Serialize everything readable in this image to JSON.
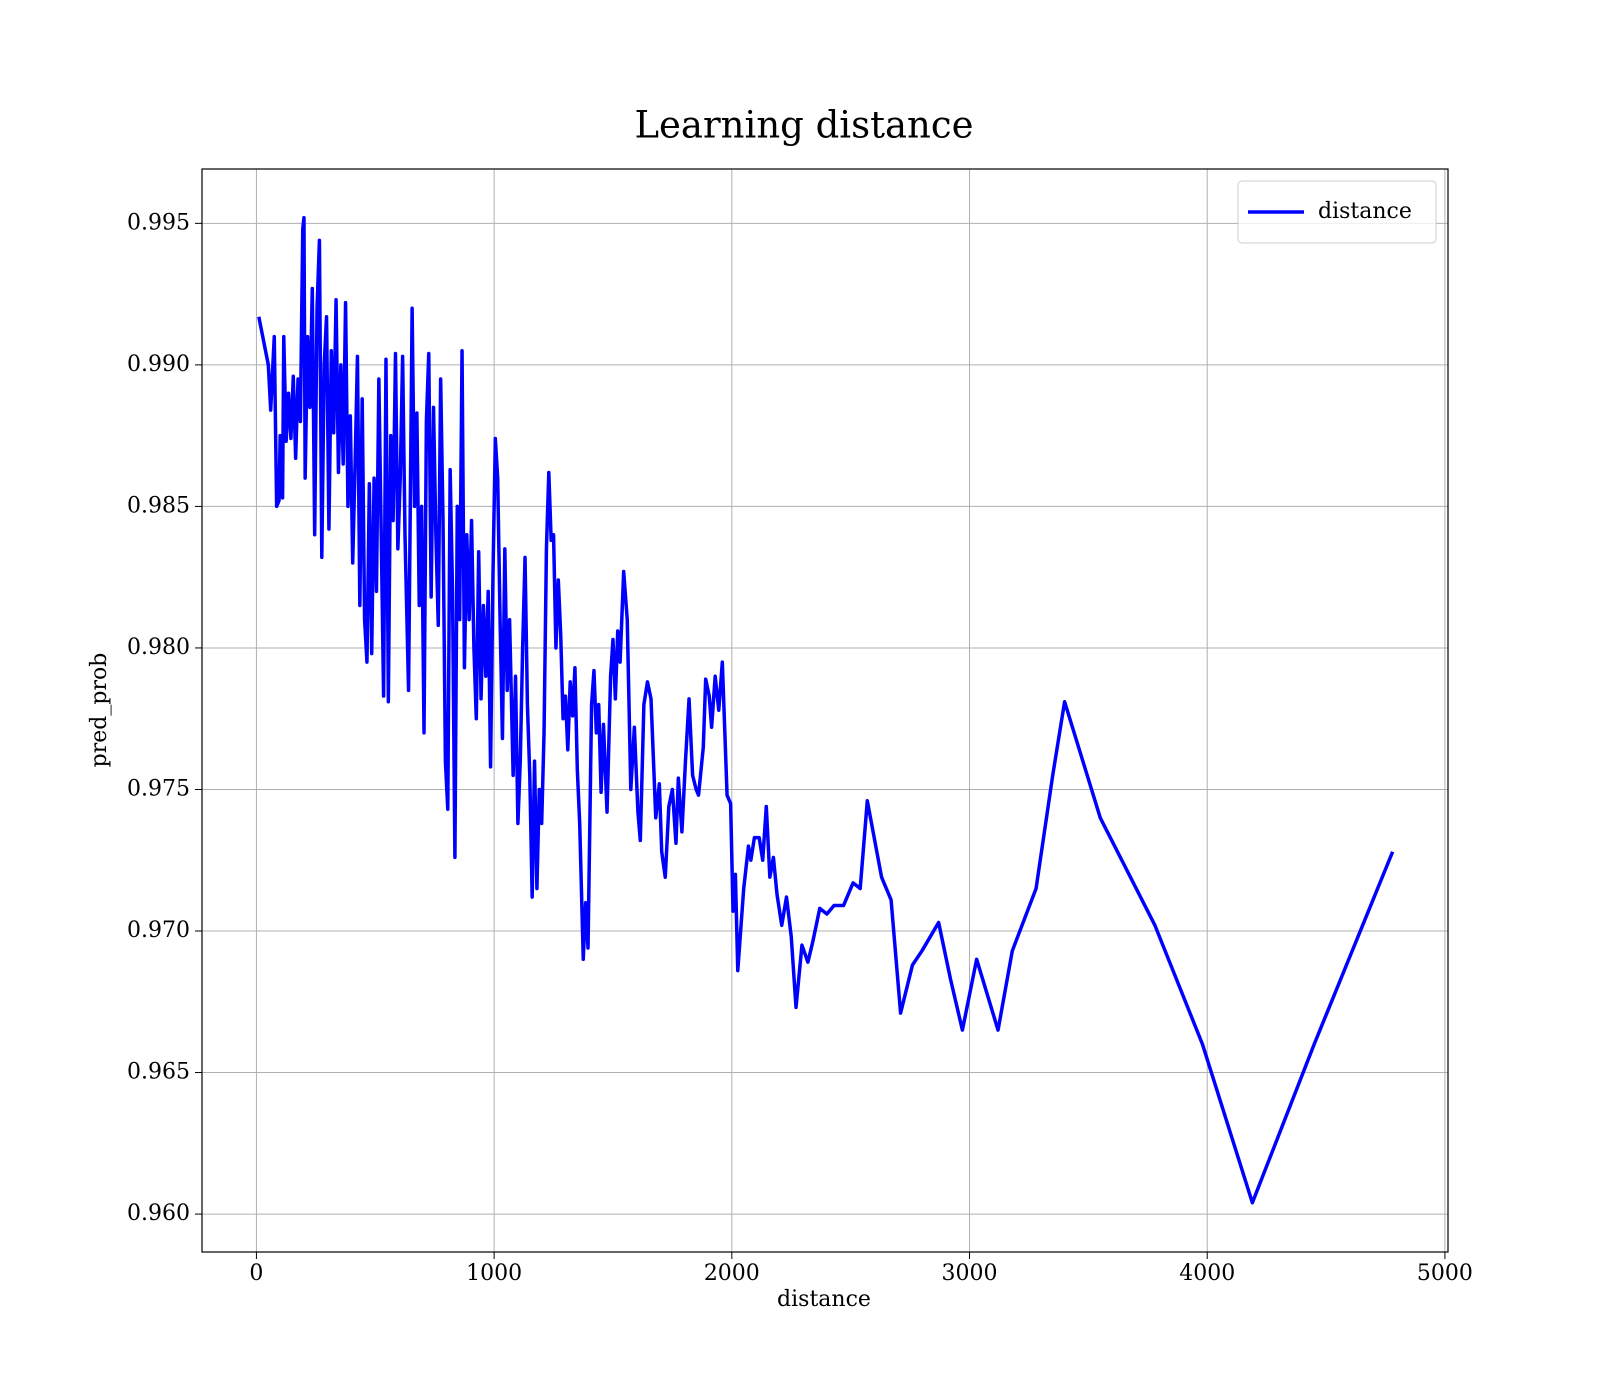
{
  "chart_data": {
    "type": "line",
    "title": "Learning distance",
    "xlabel": "distance",
    "ylabel": "pred_prob",
    "xlim": [
      -229,
      5013
    ],
    "ylim": [
      0.95866,
      0.99692
    ],
    "xticks": [
      0,
      1000,
      2000,
      3000,
      4000,
      5000
    ],
    "yticks": [
      {
        "value": 0.96,
        "label": "0.960"
      },
      0.965,
      {
        "value": 0.97,
        "label": "0.970"
      },
      0.975,
      {
        "value": 0.98,
        "label": "0.980"
      },
      0.985,
      {
        "value": 0.99,
        "label": "0.990"
      },
      0.995
    ],
    "grid": true,
    "legend": "upper right",
    "x": [
      10,
      50,
      60,
      75,
      85,
      95,
      100,
      110,
      115,
      125,
      135,
      145,
      155,
      165,
      175,
      185,
      190,
      195,
      200,
      205,
      215,
      225,
      235,
      245,
      255,
      265,
      275,
      285,
      295,
      305,
      315,
      325,
      335,
      345,
      355,
      365,
      375,
      385,
      395,
      405,
      415,
      425,
      435,
      445,
      455,
      465,
      475,
      485,
      495,
      505,
      515,
      525,
      535,
      545,
      555,
      565,
      575,
      585,
      595,
      605,
      615,
      625,
      640,
      655,
      665,
      675,
      685,
      695,
      705,
      715,
      725,
      735,
      745,
      755,
      765,
      775,
      785,
      795,
      805,
      815,
      825,
      835,
      845,
      855,
      865,
      875,
      885,
      895,
      905,
      915,
      925,
      935,
      945,
      955,
      965,
      975,
      985,
      995,
      1005,
      1015,
      1025,
      1035,
      1045,
      1055,
      1065,
      1080,
      1090,
      1100,
      1110,
      1120,
      1130,
      1140,
      1150,
      1160,
      1170,
      1180,
      1190,
      1200,
      1210,
      1220,
      1230,
      1240,
      1250,
      1260,
      1270,
      1280,
      1290,
      1300,
      1310,
      1320,
      1330,
      1340,
      1350,
      1360,
      1375,
      1385,
      1395,
      1410,
      1420,
      1430,
      1440,
      1450,
      1460,
      1475,
      1490,
      1500,
      1510,
      1520,
      1530,
      1545,
      1560,
      1575,
      1590,
      1605,
      1615,
      1630,
      1645,
      1660,
      1680,
      1695,
      1705,
      1720,
      1735,
      1750,
      1765,
      1775,
      1790,
      1805,
      1820,
      1835,
      1850,
      1860,
      1880,
      1890,
      1905,
      1915,
      1930,
      1945,
      1960,
      1980,
      1995,
      2005,
      2015,
      2025,
      2050,
      2070,
      2080,
      2095,
      2115,
      2130,
      2145,
      2160,
      2175,
      2190,
      2210,
      2230,
      2250,
      2270,
      2295,
      2320,
      2340,
      2370,
      2400,
      2430,
      2470,
      2510,
      2540,
      2570,
      2630,
      2670,
      2710,
      2760,
      2800,
      2870,
      2920,
      2970,
      3030,
      3120,
      3180,
      3280,
      3350,
      3400,
      3550,
      3780,
      3980,
      4190,
      4450,
      4780
    ],
    "series": [
      {
        "name": "distance",
        "color": "#0000ff",
        "values": [
          0.9917,
          0.99,
          0.9884,
          0.991,
          0.985,
          0.9852,
          0.9875,
          0.9853,
          0.991,
          0.9873,
          0.989,
          0.9874,
          0.9896,
          0.9867,
          0.9895,
          0.988,
          0.9915,
          0.9948,
          0.9952,
          0.986,
          0.991,
          0.9885,
          0.9927,
          0.984,
          0.992,
          0.9944,
          0.9832,
          0.99,
          0.9917,
          0.9842,
          0.9905,
          0.9876,
          0.9923,
          0.9862,
          0.99,
          0.9865,
          0.9922,
          0.985,
          0.9882,
          0.983,
          0.9865,
          0.9903,
          0.9815,
          0.9888,
          0.981,
          0.9795,
          0.9858,
          0.9798,
          0.986,
          0.982,
          0.9895,
          0.984,
          0.9783,
          0.9902,
          0.9781,
          0.9875,
          0.9845,
          0.9904,
          0.9835,
          0.986,
          0.9903,
          0.984,
          0.9785,
          0.992,
          0.985,
          0.9883,
          0.9815,
          0.985,
          0.977,
          0.988,
          0.9904,
          0.9818,
          0.9885,
          0.984,
          0.9808,
          0.9895,
          0.9845,
          0.976,
          0.9743,
          0.9863,
          0.982,
          0.9726,
          0.985,
          0.981,
          0.9905,
          0.9793,
          0.984,
          0.981,
          0.9845,
          0.98,
          0.9775,
          0.9834,
          0.9782,
          0.9815,
          0.979,
          0.982,
          0.9758,
          0.9825,
          0.9874,
          0.986,
          0.981,
          0.9768,
          0.9835,
          0.9785,
          0.981,
          0.9755,
          0.979,
          0.9738,
          0.976,
          0.98,
          0.9832,
          0.978,
          0.9755,
          0.9712,
          0.976,
          0.9715,
          0.975,
          0.9738,
          0.977,
          0.9835,
          0.9862,
          0.9838,
          0.984,
          0.98,
          0.9824,
          0.9805,
          0.9775,
          0.9783,
          0.9764,
          0.9788,
          0.9776,
          0.9793,
          0.9757,
          0.9738,
          0.969,
          0.971,
          0.9694,
          0.978,
          0.9792,
          0.977,
          0.978,
          0.9749,
          0.9773,
          0.9742,
          0.979,
          0.9803,
          0.9782,
          0.9806,
          0.9795,
          0.9827,
          0.981,
          0.975,
          0.9772,
          0.9742,
          0.9732,
          0.978,
          0.9788,
          0.9782,
          0.974,
          0.9752,
          0.9728,
          0.9719,
          0.9744,
          0.975,
          0.9731,
          0.9754,
          0.9735,
          0.976,
          0.9782,
          0.9755,
          0.975,
          0.9748,
          0.9765,
          0.9789,
          0.9783,
          0.9772,
          0.979,
          0.9778,
          0.9795,
          0.9748,
          0.9745,
          0.9707,
          0.972,
          0.9686,
          0.9715,
          0.973,
          0.9725,
          0.9733,
          0.9733,
          0.9725,
          0.9744,
          0.9719,
          0.9726,
          0.9713,
          0.9702,
          0.9712,
          0.9698,
          0.9673,
          0.9695,
          0.9689,
          0.9696,
          0.9708,
          0.9706,
          0.9709,
          0.9709,
          0.9717,
          0.9715,
          0.9746,
          0.9719,
          0.9711,
          0.9671,
          0.9688,
          0.9693,
          0.9703,
          0.9683,
          0.9665,
          0.969,
          0.9665,
          0.9693,
          0.9715,
          0.9755,
          0.9781,
          0.974,
          0.9702,
          0.966,
          0.9604,
          0.966,
          0.9728
        ]
      }
    ]
  }
}
